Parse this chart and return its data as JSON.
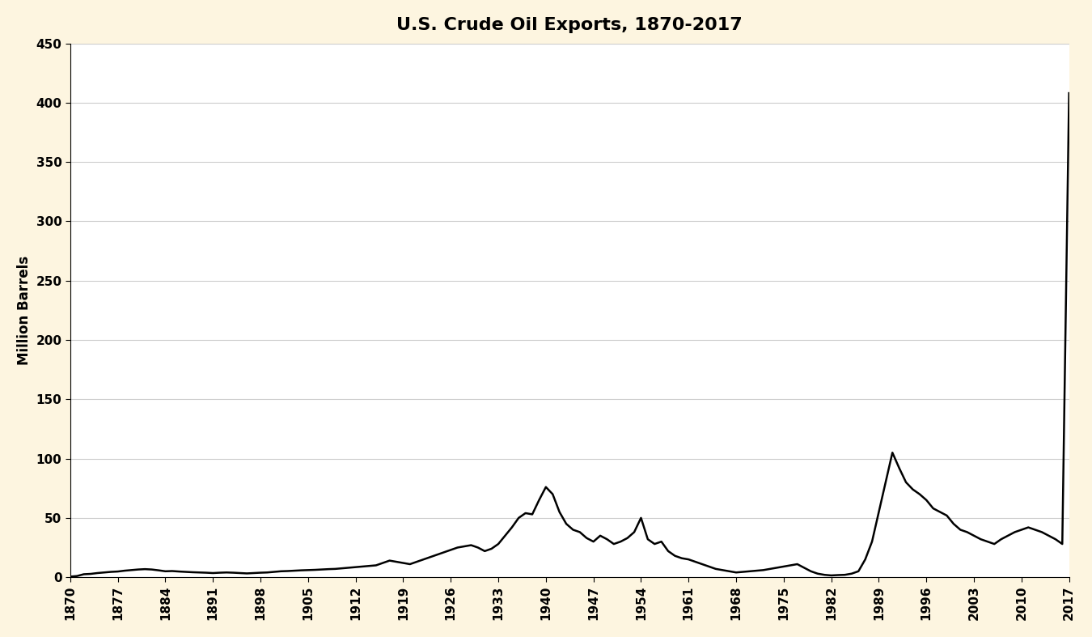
{
  "title": "U.S. Crude Oil Exports, 1870-2017",
  "ylabel": "Million Barrels",
  "background_color": "#fdf5e0",
  "plot_background": "#ffffff",
  "line_color": "#000000",
  "line_width": 1.8,
  "xlim": [
    1870,
    2017
  ],
  "ylim": [
    0,
    450
  ],
  "yticks": [
    0,
    50,
    100,
    150,
    200,
    250,
    300,
    350,
    400,
    450
  ],
  "xticks": [
    1870,
    1877,
    1884,
    1891,
    1898,
    1905,
    1912,
    1919,
    1926,
    1933,
    1940,
    1947,
    1954,
    1961,
    1968,
    1975,
    1982,
    1989,
    1996,
    2003,
    2010,
    2017
  ],
  "years": [
    1870,
    1871,
    1872,
    1873,
    1874,
    1875,
    1876,
    1877,
    1878,
    1879,
    1880,
    1881,
    1882,
    1883,
    1884,
    1885,
    1886,
    1887,
    1888,
    1889,
    1890,
    1891,
    1892,
    1893,
    1894,
    1895,
    1896,
    1897,
    1898,
    1899,
    1900,
    1901,
    1902,
    1903,
    1904,
    1905,
    1906,
    1907,
    1908,
    1909,
    1910,
    1911,
    1912,
    1913,
    1914,
    1915,
    1916,
    1917,
    1918,
    1919,
    1920,
    1921,
    1922,
    1923,
    1924,
    1925,
    1926,
    1927,
    1928,
    1929,
    1930,
    1931,
    1932,
    1933,
    1934,
    1935,
    1936,
    1937,
    1938,
    1939,
    1940,
    1941,
    1942,
    1943,
    1944,
    1945,
    1946,
    1947,
    1948,
    1949,
    1950,
    1951,
    1952,
    1953,
    1954,
    1955,
    1956,
    1957,
    1958,
    1959,
    1960,
    1961,
    1962,
    1963,
    1964,
    1965,
    1966,
    1967,
    1968,
    1969,
    1970,
    1971,
    1972,
    1973,
    1974,
    1975,
    1976,
    1977,
    1978,
    1979,
    1980,
    1981,
    1982,
    1983,
    1984,
    1985,
    1986,
    1987,
    1988,
    1989,
    1990,
    1991,
    1992,
    1993,
    1994,
    1995,
    1996,
    1997,
    1998,
    1999,
    2000,
    2001,
    2002,
    2003,
    2004,
    2005,
    2006,
    2007,
    2008,
    2009,
    2010,
    2011,
    2012,
    2013,
    2014,
    2015,
    2016,
    2017
  ],
  "values": [
    0.5,
    1.0,
    2.5,
    2.8,
    3.5,
    4.0,
    4.5,
    4.8,
    5.5,
    6.0,
    6.5,
    6.8,
    6.5,
    5.8,
    5.0,
    5.2,
    4.8,
    4.5,
    4.2,
    4.0,
    3.8,
    3.5,
    3.8,
    4.0,
    3.8,
    3.5,
    3.2,
    3.5,
    3.8,
    4.0,
    4.5,
    5.0,
    5.2,
    5.5,
    5.8,
    6.0,
    6.2,
    6.5,
    6.8,
    7.0,
    7.5,
    8.0,
    8.5,
    9.0,
    9.5,
    10.0,
    12.0,
    14.0,
    13.0,
    12.0,
    11.0,
    13.0,
    15.0,
    17.0,
    19.0,
    21.0,
    23.0,
    25.0,
    26.0,
    27.0,
    25.0,
    22.0,
    24.0,
    28.0,
    35.0,
    42.0,
    50.0,
    54.0,
    53.0,
    65.0,
    76.0,
    70.0,
    55.0,
    45.0,
    40.0,
    38.0,
    33.0,
    30.0,
    35.0,
    32.0,
    28.0,
    30.0,
    33.0,
    38.0,
    50.0,
    32.0,
    28.0,
    30.0,
    22.0,
    18.0,
    16.0,
    15.0,
    13.0,
    11.0,
    9.0,
    7.0,
    6.0,
    5.0,
    4.0,
    4.5,
    5.0,
    5.5,
    6.0,
    7.0,
    8.0,
    9.0,
    10.0,
    11.0,
    8.0,
    5.0,
    3.0,
    2.0,
    1.5,
    1.8,
    2.0,
    3.0,
    5.0,
    15.0,
    30.0,
    55.0,
    80.0,
    105.0,
    92.0,
    80.0,
    74.0,
    70.0,
    65.0,
    58.0,
    55.0,
    52.0,
    45.0,
    40.0,
    38.0,
    35.0,
    32.0,
    30.0,
    28.0,
    32.0,
    35.0,
    38.0,
    40.0,
    42.0,
    40.0,
    38.0,
    35.0,
    32.0,
    28.0,
    408.0
  ]
}
